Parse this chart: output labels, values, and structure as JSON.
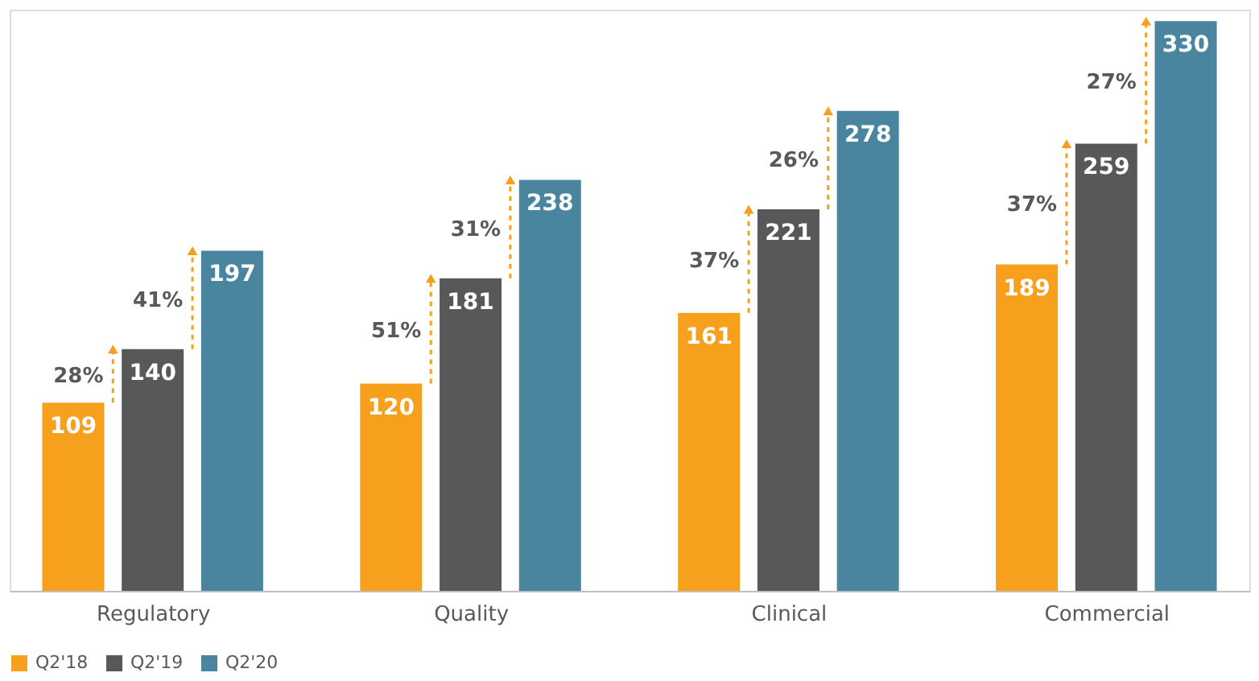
{
  "chart_data": {
    "type": "bar",
    "categories": [
      "Regulatory",
      "Quality",
      "Clinical",
      "Commercial"
    ],
    "series": [
      {
        "name": "Q2'18",
        "color": "#f7a01d",
        "values": [
          109,
          120,
          161,
          189
        ]
      },
      {
        "name": "Q2'19",
        "color": "#58585a",
        "values": [
          140,
          181,
          221,
          259
        ]
      },
      {
        "name": "Q2'20",
        "color": "#4a85a0",
        "values": [
          197,
          238,
          278,
          330
        ]
      }
    ],
    "data_labels": true,
    "legend": "bottom",
    "grid": false,
    "annotations": [
      "28%",
      "41%",
      "51%",
      "31%",
      "37%",
      "26%",
      "37%",
      "27%"
    ]
  }
}
